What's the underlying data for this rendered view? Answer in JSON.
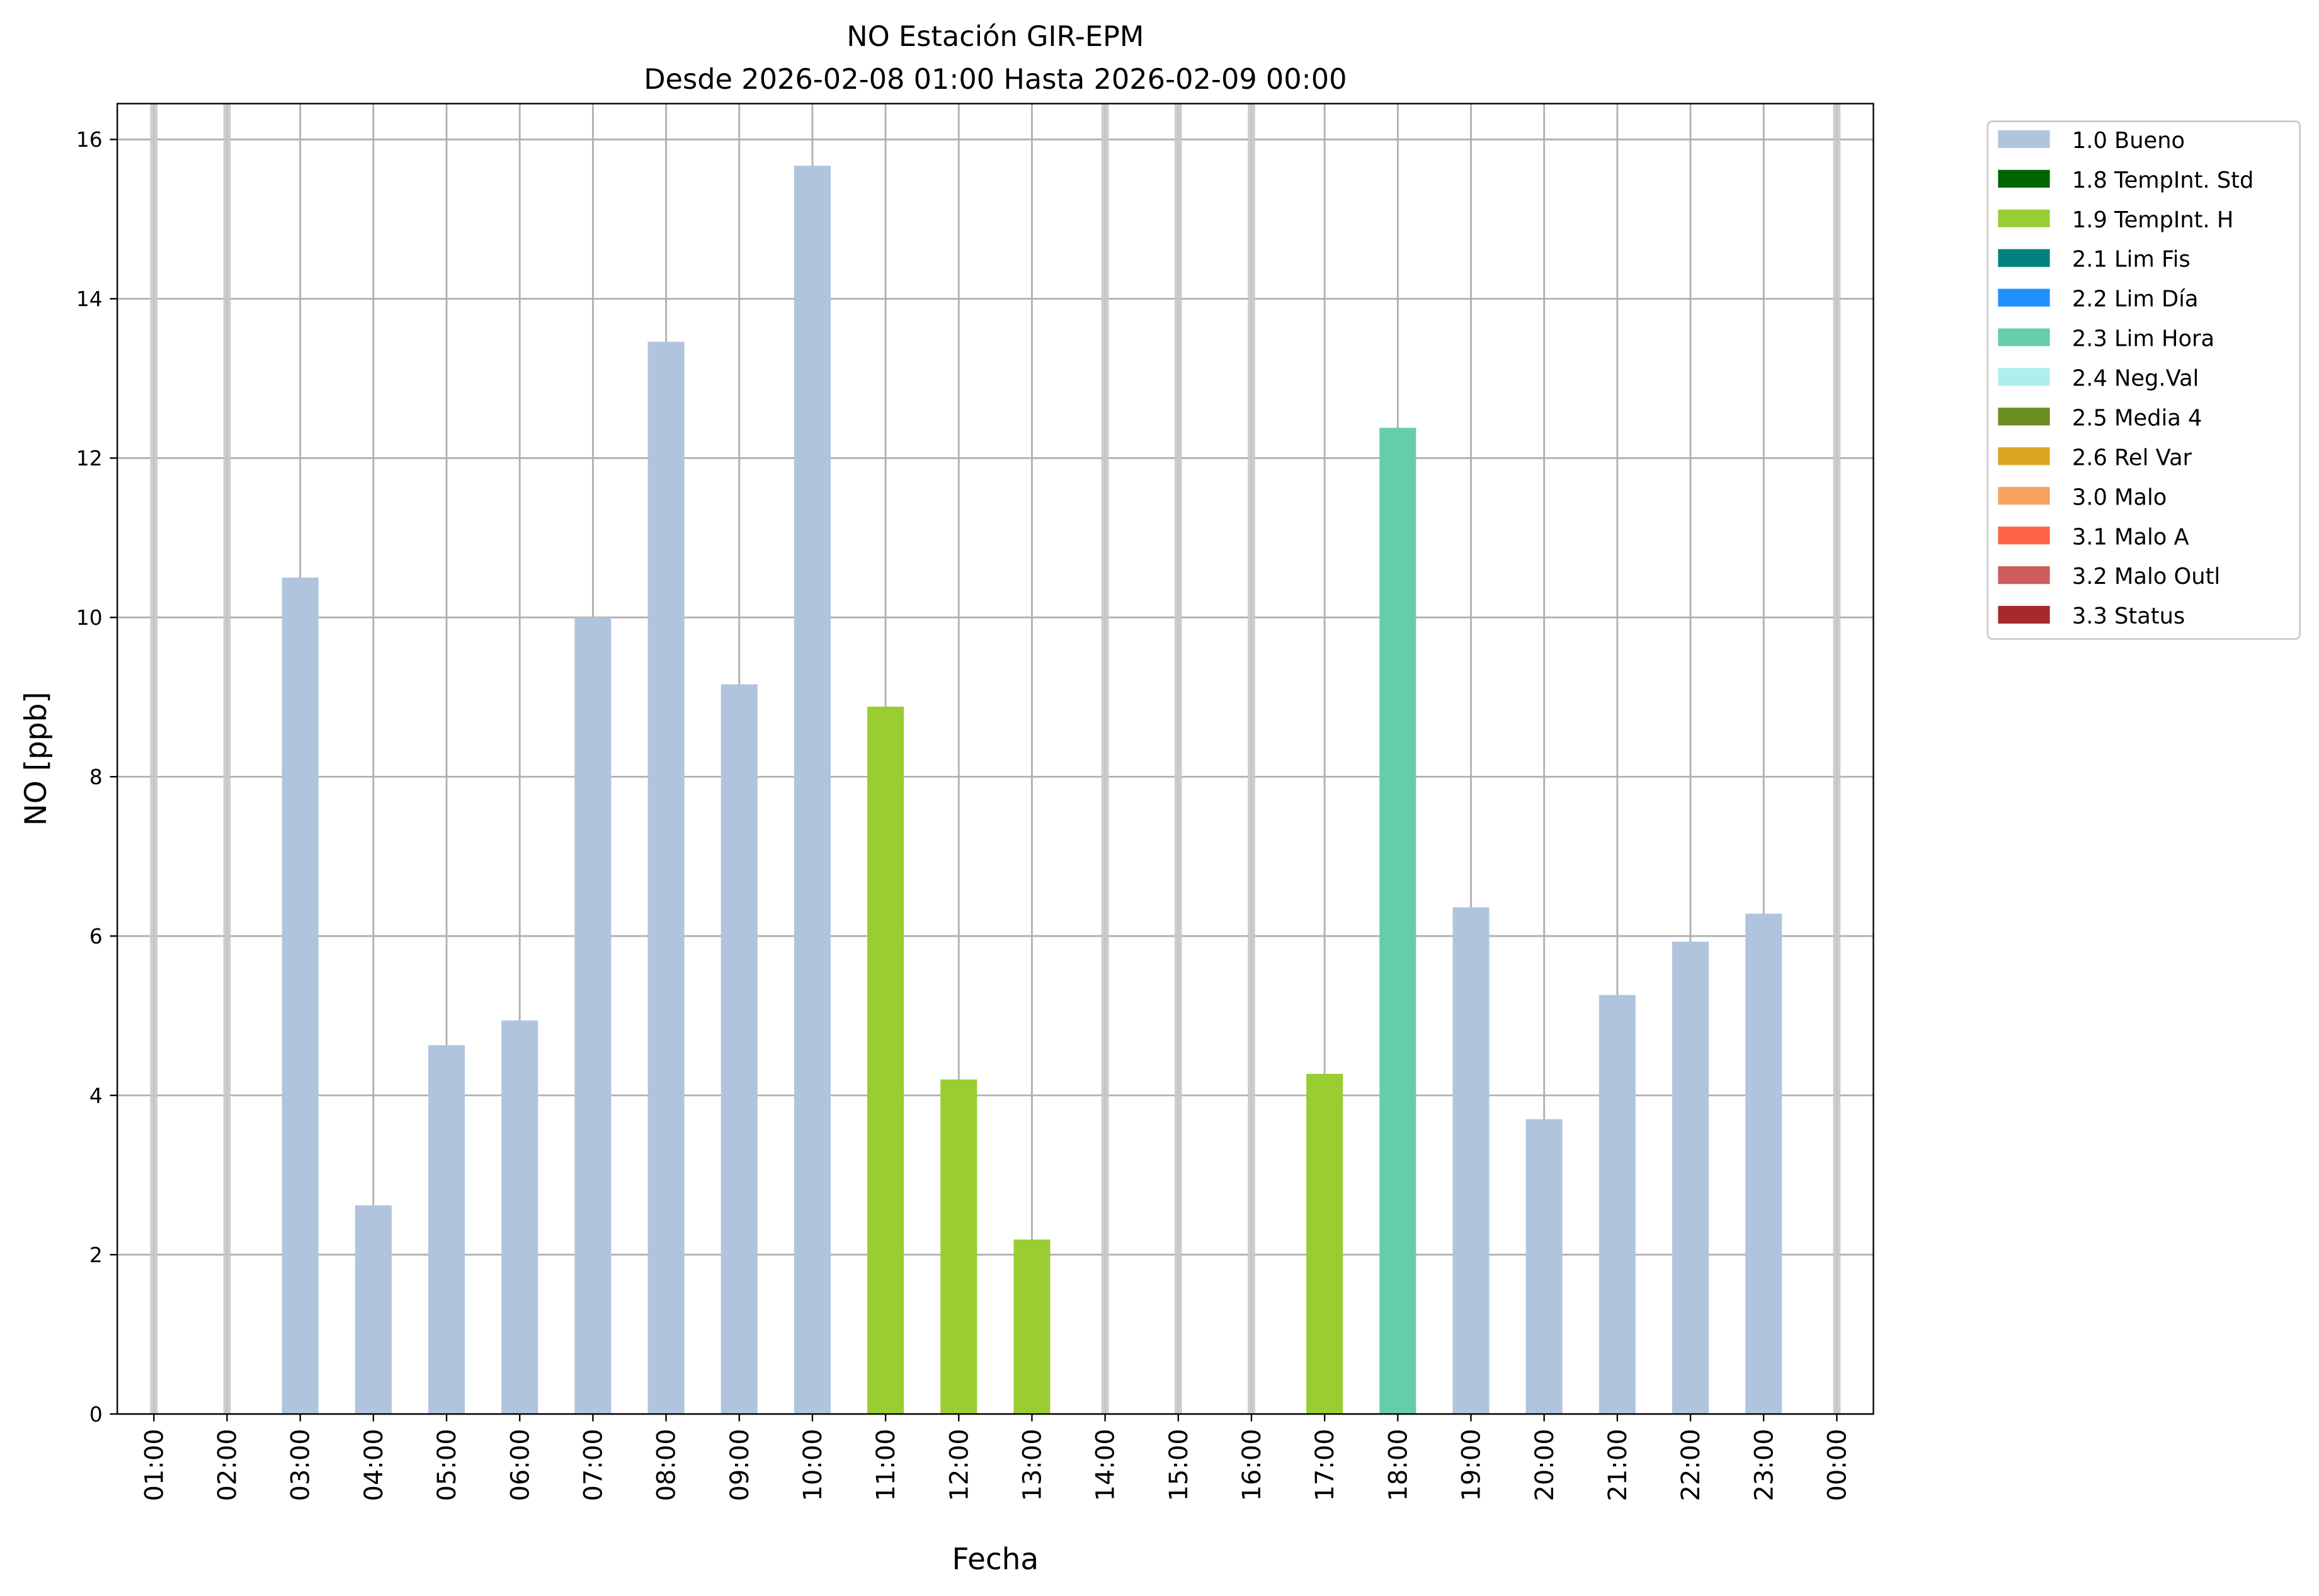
{
  "chart_data": {
    "type": "bar",
    "title": "NO Estación GIR-EPM",
    "subtitle": "Desde 2026-02-08 01:00 Hasta 2026-02-09 00:00",
    "xlabel": "Fecha",
    "ylabel": "NO [ppb]",
    "ylim": [
      0,
      16.45
    ],
    "yticks": [
      0,
      2,
      4,
      6,
      8,
      10,
      12,
      14,
      16
    ],
    "grid": true,
    "legend_placement": "outside-top-right",
    "categories": [
      "01:00",
      "02:00",
      "03:00",
      "04:00",
      "05:00",
      "06:00",
      "07:00",
      "08:00",
      "09:00",
      "10:00",
      "11:00",
      "12:00",
      "13:00",
      "14:00",
      "15:00",
      "16:00",
      "17:00",
      "18:00",
      "19:00",
      "20:00",
      "21:00",
      "22:00",
      "23:00",
      "00:00"
    ],
    "values": [
      null,
      null,
      10.5,
      2.62,
      4.63,
      4.94,
      10.0,
      13.46,
      9.16,
      15.67,
      8.88,
      4.2,
      2.19,
      null,
      null,
      null,
      4.27,
      12.38,
      6.36,
      3.7,
      5.26,
      5.93,
      6.28,
      null
    ],
    "flags": [
      "missing",
      "missing",
      "1.0",
      "1.0",
      "1.0",
      "1.0",
      "1.0",
      "1.0",
      "1.0",
      "1.0",
      "1.9",
      "1.9",
      "1.9",
      "missing",
      "missing",
      "missing",
      "1.9",
      "2.3",
      "1.0",
      "1.0",
      "1.0",
      "1.0",
      "1.0",
      "missing"
    ],
    "missing_color": "#c8c8c8",
    "legend": [
      {
        "code": "1.0",
        "label": "1.0 Bueno",
        "color": "#b0c4de"
      },
      {
        "code": "1.8",
        "label": "1.8 TempInt. Std",
        "color": "#006400"
      },
      {
        "code": "1.9",
        "label": "1.9 TempInt. H",
        "color": "#9acd32"
      },
      {
        "code": "2.1",
        "label": "2.1 Lim Fis",
        "color": "#008080"
      },
      {
        "code": "2.2",
        "label": "2.2 Lim Día",
        "color": "#1e90ff"
      },
      {
        "code": "2.3",
        "label": "2.3 Lim Hora",
        "color": "#66cdaa"
      },
      {
        "code": "2.4",
        "label": "2.4 Neg.Val",
        "color": "#afeeee"
      },
      {
        "code": "2.5",
        "label": "2.5 Media 4",
        "color": "#6b8e23"
      },
      {
        "code": "2.6",
        "label": "2.6 Rel Var",
        "color": "#daa520"
      },
      {
        "code": "3.0",
        "label": "3.0 Malo",
        "color": "#f4a460"
      },
      {
        "code": "3.1",
        "label": "3.1 Malo A",
        "color": "#ff6347"
      },
      {
        "code": "3.2",
        "label": "3.2 Malo Outl",
        "color": "#cd5c5c"
      },
      {
        "code": "3.3",
        "label": "3.3 Status",
        "color": "#a52a2a"
      }
    ]
  }
}
